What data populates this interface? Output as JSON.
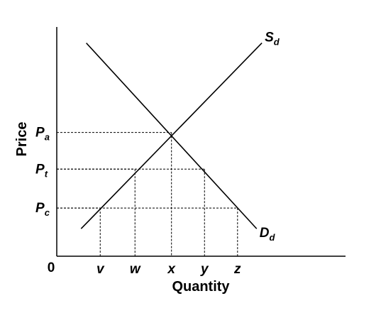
{
  "chart_data": {
    "type": "line",
    "xlabel": "Quantity",
    "ylabel": "Price",
    "origin_label": "0",
    "xlim": [
      0,
      10
    ],
    "ylim": [
      0,
      10
    ],
    "grid": false,
    "legend": "none",
    "x_ticks": [
      {
        "label": "v",
        "value": 1.25
      },
      {
        "label": "w",
        "value": 2.25
      },
      {
        "label": "x",
        "value": 3.3
      },
      {
        "label": "y",
        "value": 4.25
      },
      {
        "label": "z",
        "value": 5.2
      }
    ],
    "y_ticks": [
      {
        "label": "P",
        "sub": "a",
        "value": 5.4
      },
      {
        "label": "P",
        "sub": "t",
        "value": 3.8
      },
      {
        "label": "P",
        "sub": "c",
        "value": 2.1
      }
    ],
    "series": [
      {
        "name": "S",
        "sub": "d",
        "x": [
          0.7,
          5.9
        ],
        "y": [
          1.2,
          9.3
        ]
      },
      {
        "name": "D",
        "sub": "d",
        "x": [
          0.85,
          5.75
        ],
        "y": [
          9.3,
          1.2
        ]
      }
    ],
    "guides": [
      {
        "x": 3.3,
        "y": 5.4
      },
      {
        "x": 2.25,
        "y": 3.8
      },
      {
        "x": 4.25,
        "y": 3.8
      },
      {
        "x": 1.25,
        "y": 2.1
      },
      {
        "x": 5.2,
        "y": 2.1
      }
    ]
  }
}
